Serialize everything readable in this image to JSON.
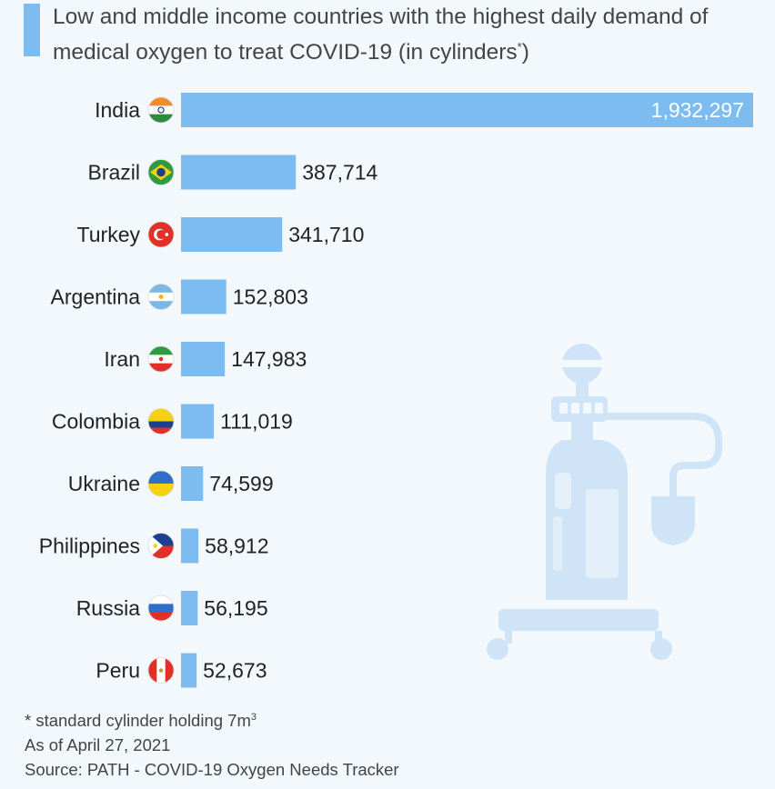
{
  "title": {
    "main": "Low and middle income countries with the highest daily demand of medical oxygen to treat COVID-19 (in cylinders",
    "sup": "*",
    "end": ")"
  },
  "chart_data": {
    "type": "bar",
    "orientation": "horizontal",
    "title": "Low and middle income countries with the highest daily demand of medical oxygen to treat COVID-19 (in cylinders*)",
    "categories": [
      "India",
      "Brazil",
      "Turkey",
      "Argentina",
      "Iran",
      "Colombia",
      "Ukraine",
      "Philippines",
      "Russia",
      "Peru"
    ],
    "values": [
      1932297,
      387714,
      341710,
      152803,
      147983,
      111019,
      74599,
      58912,
      56195,
      52673
    ],
    "value_labels": [
      "1,932,297",
      "387,714",
      "341,710",
      "152,803",
      "147,983",
      "111,019",
      "74,599",
      "58,912",
      "56,195",
      "52,673"
    ],
    "bar_color": "#7cbcf0",
    "xlim": [
      0,
      1932297
    ],
    "grid": false,
    "legend": "none"
  },
  "footer": {
    "note_prefix": "* standard cylinder holding 7m",
    "note_sup": "3",
    "date": "As of April 27, 2021",
    "source": "Source: PATH - COVID-19 Oxygen Needs Tracker"
  },
  "colors": {
    "accent": "#7cbcf0",
    "illustration": "#cfe4f6",
    "background": "#f3f8fc"
  },
  "icons": {
    "flags": [
      "india-flag-icon",
      "brazil-flag-icon",
      "turkey-flag-icon",
      "argentina-flag-icon",
      "iran-flag-icon",
      "colombia-flag-icon",
      "ukraine-flag-icon",
      "philippines-flag-icon",
      "russia-flag-icon",
      "peru-flag-icon"
    ],
    "illustration": "oxygen-cylinder-icon"
  }
}
